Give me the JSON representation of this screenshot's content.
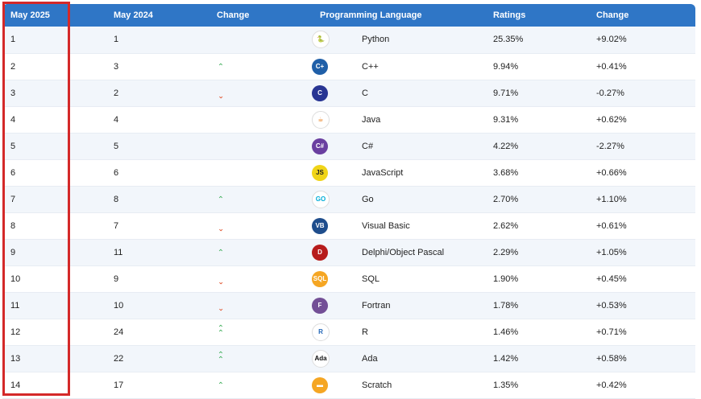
{
  "headers": {
    "rank_2025": "May 2025",
    "rank_2024": "May 2024",
    "change": "Change",
    "language": "Programming Language",
    "ratings": "Ratings",
    "rating_change": "Change"
  },
  "rows": [
    {
      "rank_2025": "1",
      "rank_2024": "1",
      "trend": "",
      "icon": {
        "name": "python-icon",
        "glyph": "🐍",
        "bg": "#ffffff",
        "fg": "#3776ab"
      },
      "language": "Python",
      "rating": "25.35%",
      "change": "+9.02%"
    },
    {
      "rank_2025": "2",
      "rank_2024": "3",
      "trend": "up",
      "icon": {
        "name": "cpp-icon",
        "glyph": "C+",
        "bg": "#1f5fa8",
        "fg": "#ffffff"
      },
      "language": "C++",
      "rating": "9.94%",
      "change": "+0.41%"
    },
    {
      "rank_2025": "3",
      "rank_2024": "2",
      "trend": "down",
      "icon": {
        "name": "c-icon",
        "glyph": "C",
        "bg": "#283593",
        "fg": "#ffffff"
      },
      "language": "C",
      "rating": "9.71%",
      "change": "-0.27%"
    },
    {
      "rank_2025": "4",
      "rank_2024": "4",
      "trend": "",
      "icon": {
        "name": "java-icon",
        "glyph": "☕",
        "bg": "#ffffff",
        "fg": "#e76f00"
      },
      "language": "Java",
      "rating": "9.31%",
      "change": "+0.62%"
    },
    {
      "rank_2025": "5",
      "rank_2024": "5",
      "trend": "",
      "icon": {
        "name": "csharp-icon",
        "glyph": "C#",
        "bg": "#6a3fa0",
        "fg": "#ffffff"
      },
      "language": "C#",
      "rating": "4.22%",
      "change": "-2.27%"
    },
    {
      "rank_2025": "6",
      "rank_2024": "6",
      "trend": "",
      "icon": {
        "name": "javascript-icon",
        "glyph": "JS",
        "bg": "#f0d418",
        "fg": "#222222"
      },
      "language": "JavaScript",
      "rating": "3.68%",
      "change": "+0.66%"
    },
    {
      "rank_2025": "7",
      "rank_2024": "8",
      "trend": "up",
      "icon": {
        "name": "go-icon",
        "glyph": "GO",
        "bg": "#ffffff",
        "fg": "#00add8"
      },
      "language": "Go",
      "rating": "2.70%",
      "change": "+1.10%"
    },
    {
      "rank_2025": "8",
      "rank_2024": "7",
      "trend": "down",
      "icon": {
        "name": "visual-basic-icon",
        "glyph": "VB",
        "bg": "#1e4d8c",
        "fg": "#ffffff"
      },
      "language": "Visual Basic",
      "rating": "2.62%",
      "change": "+0.61%"
    },
    {
      "rank_2025": "9",
      "rank_2024": "11",
      "trend": "up",
      "icon": {
        "name": "delphi-icon",
        "glyph": "D",
        "bg": "#b71c1c",
        "fg": "#ffffff"
      },
      "language": "Delphi/Object Pascal",
      "rating": "2.29%",
      "change": "+1.05%"
    },
    {
      "rank_2025": "10",
      "rank_2024": "9",
      "trend": "down",
      "icon": {
        "name": "sql-icon",
        "glyph": "SQL",
        "bg": "#f5a623",
        "fg": "#ffffff"
      },
      "language": "SQL",
      "rating": "1.90%",
      "change": "+0.45%"
    },
    {
      "rank_2025": "11",
      "rank_2024": "10",
      "trend": "down",
      "icon": {
        "name": "fortran-icon",
        "glyph": "F",
        "bg": "#734f96",
        "fg": "#ffffff"
      },
      "language": "Fortran",
      "rating": "1.78%",
      "change": "+0.53%"
    },
    {
      "rank_2025": "12",
      "rank_2024": "24",
      "trend": "up2",
      "icon": {
        "name": "r-icon",
        "glyph": "R",
        "bg": "#ffffff",
        "fg": "#2467b8"
      },
      "language": "R",
      "rating": "1.46%",
      "change": "+0.71%"
    },
    {
      "rank_2025": "13",
      "rank_2024": "22",
      "trend": "up2",
      "icon": {
        "name": "ada-icon",
        "glyph": "Ada",
        "bg": "#ffffff",
        "fg": "#111111"
      },
      "language": "Ada",
      "rating": "1.42%",
      "change": "+0.58%"
    },
    {
      "rank_2025": "14",
      "rank_2024": "17",
      "trend": "up",
      "icon": {
        "name": "scratch-icon",
        "glyph": "▬",
        "bg": "#f5a623",
        "fg": "#ffffff"
      },
      "language": "Scratch",
      "rating": "1.35%",
      "change": "+0.42%"
    }
  ],
  "colors": {
    "header_bg": "#2f76c6",
    "up": "#3fae5a",
    "down": "#e0522c",
    "highlight": "#d42929"
  }
}
